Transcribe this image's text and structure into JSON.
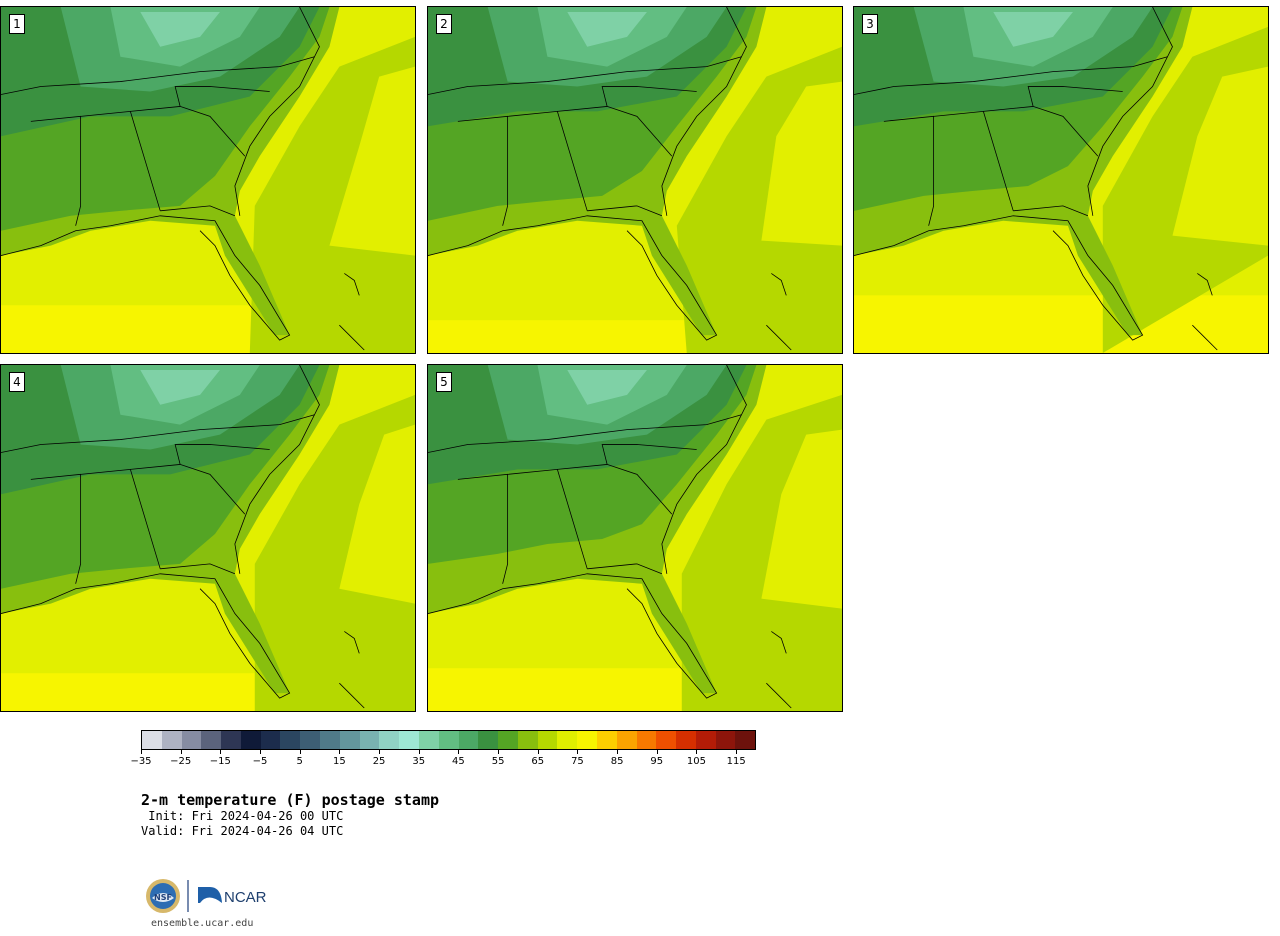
{
  "panels": [
    {
      "label": "1"
    },
    {
      "label": "2"
    },
    {
      "label": "3"
    },
    {
      "label": "4"
    },
    {
      "label": "5"
    }
  ],
  "colorbar": {
    "ticks": [
      "−35",
      "−25",
      "−15",
      "−5",
      "5",
      "15",
      "25",
      "35",
      "45",
      "55",
      "65",
      "75",
      "85",
      "95",
      "105",
      "115"
    ],
    "colors": [
      "#dcdee6",
      "#aeb2c2",
      "#868ca2",
      "#5b637c",
      "#2e3654",
      "#0f1a38",
      "#1c2c4c",
      "#2b4660",
      "#3d5e74",
      "#507a88",
      "#63969c",
      "#79b2b0",
      "#90d2c4",
      "#9ee8d4",
      "#7fd1a6",
      "#62be82",
      "#4ca865",
      "#3a9140",
      "#54a524",
      "#88bf0e",
      "#b5d800",
      "#e0ef00",
      "#f7f500",
      "#fdcf00",
      "#fba400",
      "#f77900",
      "#ef5000",
      "#d52f00",
      "#b31c07",
      "#8d150b",
      "#6d120c"
    ],
    "unit_note": "F"
  },
  "header": {
    "title": "2-m temperature (F) postage stamp",
    "init": " Init: Fri 2024-04-26 00 UTC",
    "valid": "Valid: Fri 2024-04-26 04 UTC"
  },
  "logos": {
    "nsf": "NSF",
    "ncar": "NCAR"
  },
  "footer": {
    "website": "ensemble.ucar.edu"
  },
  "map_colors": {
    "gulf": "#e2ef00",
    "gulf_south": "#f7f500",
    "atlantic_far": "#b5d800",
    "coast": "#88bf0e",
    "land_warm": "#54a524",
    "land_mid": "#3a9140",
    "land_cool": "#4ca865",
    "mountains": "#62be82",
    "mountains_peak": "#7fd1a6"
  }
}
